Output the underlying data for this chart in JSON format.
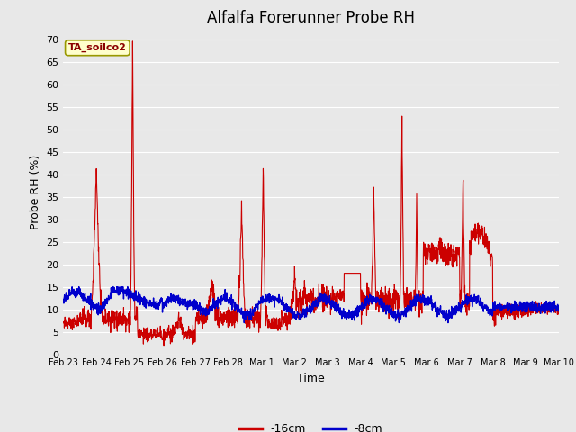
{
  "title": "Alfalfa Forerunner Probe RH",
  "xlabel": "Time",
  "ylabel": "Probe RH (%)",
  "annotation_text": "TA_soilco2",
  "ylim": [
    0,
    72
  ],
  "yticks": [
    0,
    5,
    10,
    15,
    20,
    25,
    30,
    35,
    40,
    45,
    50,
    55,
    60,
    65,
    70
  ],
  "bg_color": "#e8e8e8",
  "plot_bg_color": "#e8e8e8",
  "grid_color": "#ffffff",
  "line_color_16cm": "#cc0000",
  "line_color_8cm": "#0000cc",
  "legend_label_16cm": "-16cm",
  "legend_label_8cm": "-8cm",
  "title_fontsize": 12,
  "axis_label_fontsize": 9,
  "tick_fontsize": 8,
  "n_days": 15,
  "xtick_labels": [
    "Feb 23",
    "Feb 24",
    "Feb 25",
    "Feb 26",
    "Feb 27",
    "Feb 28",
    "Mar 1",
    "Mar 2",
    "Mar 3",
    "Mar 4",
    "Mar 5",
    "Mar 6",
    "Mar 7",
    "Mar 8",
    "Mar 9",
    "Mar 10"
  ]
}
